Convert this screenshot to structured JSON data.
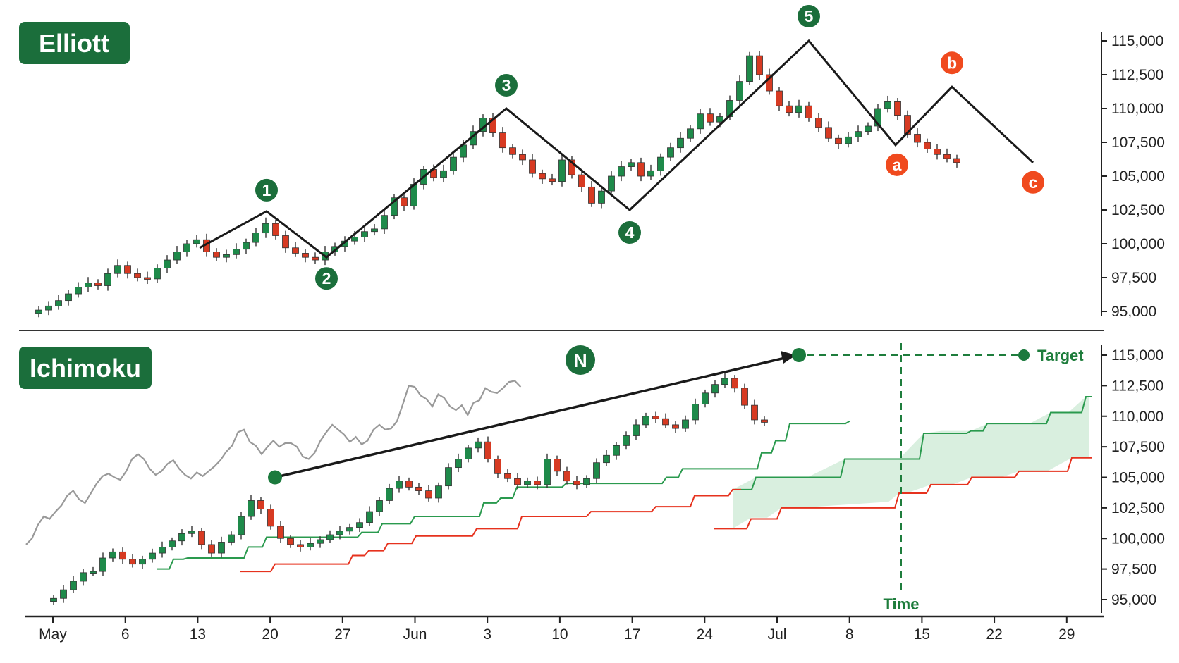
{
  "colors": {
    "up": "#1e8a4a",
    "down": "#d73a22",
    "badge_green": "#1b6e3b",
    "badge_red": "#f04a1e",
    "cloud": "#d9efdf",
    "price_line": "#999999",
    "axis": "#222222"
  },
  "chart_data": [
    {
      "type": "candlestick",
      "title": "Elliott",
      "ylim": [
        95000,
        115000
      ],
      "yticks": [
        "95,000",
        "97,500",
        "100,000",
        "102,500",
        "105,000",
        "107,500",
        "110,000",
        "112,500",
        "115,000"
      ],
      "ytick_values": [
        95000,
        97500,
        100000,
        102500,
        105000,
        107500,
        110000,
        112500,
        115000
      ],
      "close": [
        95100,
        95400,
        95800,
        96300,
        96800,
        97100,
        96900,
        97800,
        98400,
        97800,
        97500,
        97400,
        98200,
        98800,
        99400,
        100000,
        100300,
        99400,
        99000,
        99200,
        99600,
        100100,
        100800,
        101500,
        100600,
        99700,
        99300,
        99000,
        98800,
        99400,
        99800,
        100200,
        100500,
        100900,
        101100,
        102100,
        103400,
        102800,
        104400,
        105500,
        104900,
        105400,
        106400,
        107300,
        108300,
        109300,
        108200,
        107100,
        106600,
        106200,
        105200,
        104800,
        104600,
        106200,
        105100,
        104200,
        103000,
        103900,
        105000,
        105700,
        106000,
        105000,
        105400,
        106400,
        107100,
        107800,
        108500,
        109600,
        109000,
        109400,
        110600,
        112000,
        113900,
        112500,
        111300,
        110200,
        109700,
        110200,
        109300,
        108600,
        107800,
        107400,
        107900,
        108300,
        108700,
        110000,
        110500,
        109500,
        108100,
        107500,
        107000,
        106600,
        106300,
        106000
      ],
      "waves": [
        {
          "label": "1",
          "value": 102400
        },
        {
          "label": "2",
          "value": 99000
        },
        {
          "label": "3",
          "value": 110000
        },
        {
          "label": "4",
          "value": 102500
        },
        {
          "label": "5",
          "value": 115000
        },
        {
          "label": "a",
          "value": 107300
        },
        {
          "label": "b",
          "value": 111600
        },
        {
          "label": "c",
          "value": 106000
        }
      ]
    },
    {
      "type": "candlestick",
      "title": "Ichimoku",
      "ylim": [
        95000,
        115000
      ],
      "yticks": [
        "95,000",
        "97,500",
        "100,000",
        "102,500",
        "105,000",
        "107,500",
        "110,000",
        "112,500",
        "115,000"
      ],
      "ytick_values": [
        95000,
        97500,
        100000,
        102500,
        105000,
        107500,
        110000,
        112500,
        115000
      ],
      "close": [
        95100,
        95800,
        96500,
        97200,
        97300,
        98400,
        98900,
        98300,
        97900,
        98300,
        98800,
        99300,
        99800,
        100400,
        100600,
        99500,
        98800,
        99700,
        100300,
        101800,
        103100,
        102400,
        101000,
        100000,
        99500,
        99300,
        99600,
        99900,
        100300,
        100600,
        100900,
        101300,
        102200,
        103100,
        104100,
        104700,
        104200,
        103900,
        103300,
        104300,
        105800,
        106500,
        107400,
        107900,
        106500,
        105300,
        104900,
        104400,
        104700,
        104400,
        106500,
        105500,
        104700,
        104400,
        104900,
        106200,
        106800,
        107600,
        108400,
        109300,
        110000,
        109800,
        109300,
        109000,
        109700,
        111000,
        111900,
        112600,
        113100,
        112300,
        110900,
        109700,
        109500
      ],
      "pattern_label": "N",
      "target_label": "Target",
      "time_label": "Time",
      "target_value": 115000,
      "n_start_value": 105000
    }
  ],
  "xaxis": {
    "ticks": [
      "May",
      "6",
      "13",
      "20",
      "27",
      "Jun",
      "3",
      "10",
      "17",
      "24",
      "Jul",
      "8",
      "15",
      "22",
      "29"
    ]
  }
}
